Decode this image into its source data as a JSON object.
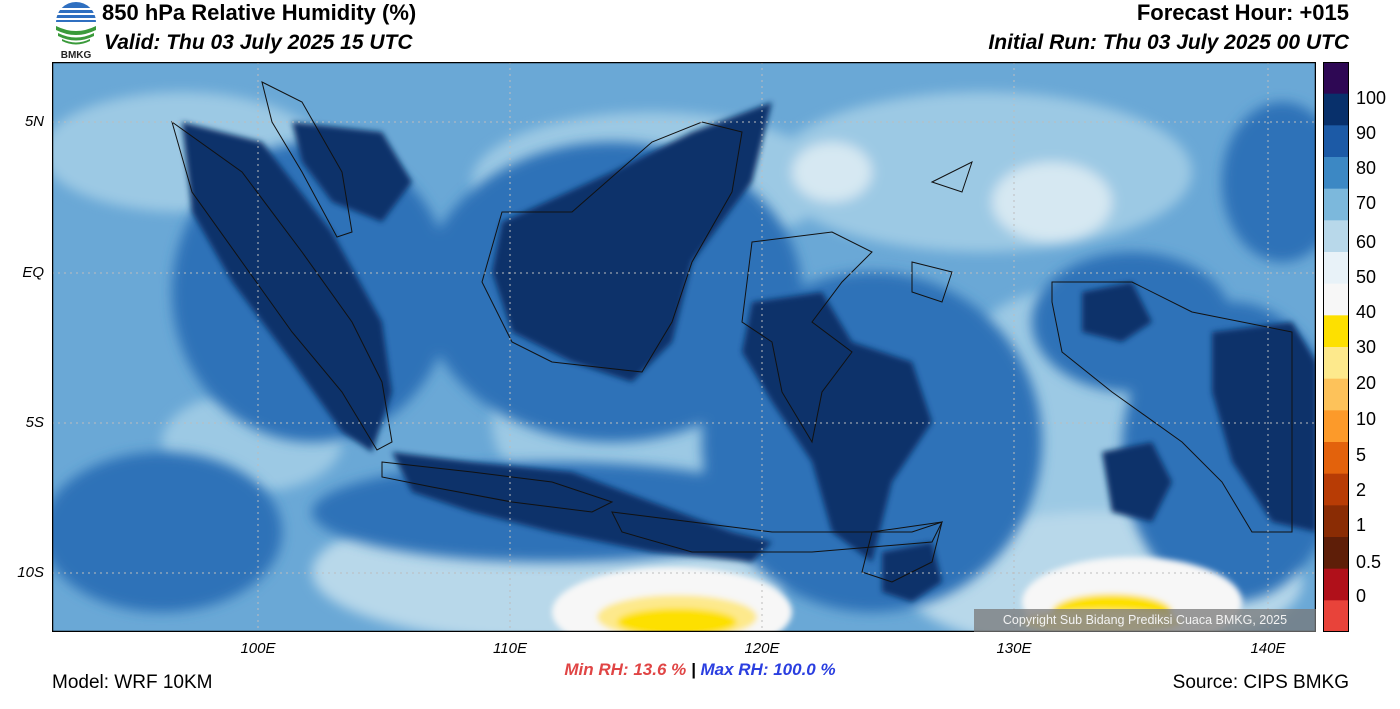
{
  "header": {
    "title": "850 hPa Relative Humidity (%)",
    "valid": "Valid: Thu 03 July 2025 15 UTC",
    "forecast_hour": "Forecast Hour: +015",
    "initial_run": "Initial Run: Thu 03 July 2025 00 UTC"
  },
  "logo": {
    "text": "BMKG"
  },
  "map": {
    "lat_labels": [
      "5N",
      "EQ",
      "5S",
      "10S"
    ],
    "lon_labels": [
      "100E",
      "110E",
      "120E",
      "130E",
      "140E"
    ],
    "copyright": "Copyright Sub Bidang Prediksi Cuaca BMKG, 2025"
  },
  "colorbar": {
    "labels": [
      "100",
      "90",
      "80",
      "70",
      "60",
      "50",
      "40",
      "30",
      "20",
      "10",
      "5",
      "2",
      "1",
      "0.5",
      "0"
    ],
    "colors": [
      "#2e0854",
      "#08306b",
      "#1c5aa6",
      "#3c88c4",
      "#7cb8dc",
      "#b8d8ea",
      "#e8f2f8",
      "#f7f7f7",
      "#fde000",
      "#fde98c",
      "#fdc25a",
      "#fc9a2a",
      "#e3620c",
      "#b83c05",
      "#8a2c04",
      "#5e1e08",
      "#b0101a",
      "#e8433a"
    ]
  },
  "stats": {
    "min_rh": "Min RH:  13.6 %",
    "separator": "|",
    "max_rh": "Max RH: 100.0 %"
  },
  "footer": {
    "model": "Model: WRF 10KM",
    "source": "Source: CIPS BMKG"
  }
}
